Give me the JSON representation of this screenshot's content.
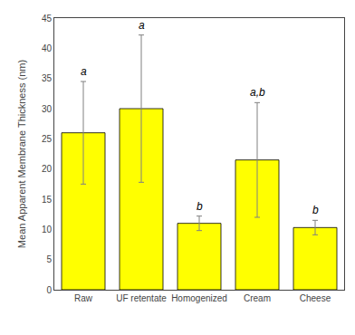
{
  "chart_data": {
    "type": "bar",
    "categories": [
      "Raw",
      "UF retentate",
      "Homogenized",
      "Cream",
      "Cheese"
    ],
    "values": [
      26.0,
      30.0,
      11.0,
      21.5,
      10.3
    ],
    "errors": [
      8.5,
      12.2,
      1.2,
      9.5,
      1.2
    ],
    "annotations": [
      "a",
      "a",
      "b",
      "a,b",
      "b"
    ],
    "color": "#FFFF00",
    "ylabel": "Mean Apparent Membrane Thickness (nm)",
    "ylim": [
      0,
      45
    ],
    "yticks": [
      0,
      5,
      10,
      15,
      20,
      25,
      30,
      35,
      40,
      45
    ],
    "grid": false
  }
}
